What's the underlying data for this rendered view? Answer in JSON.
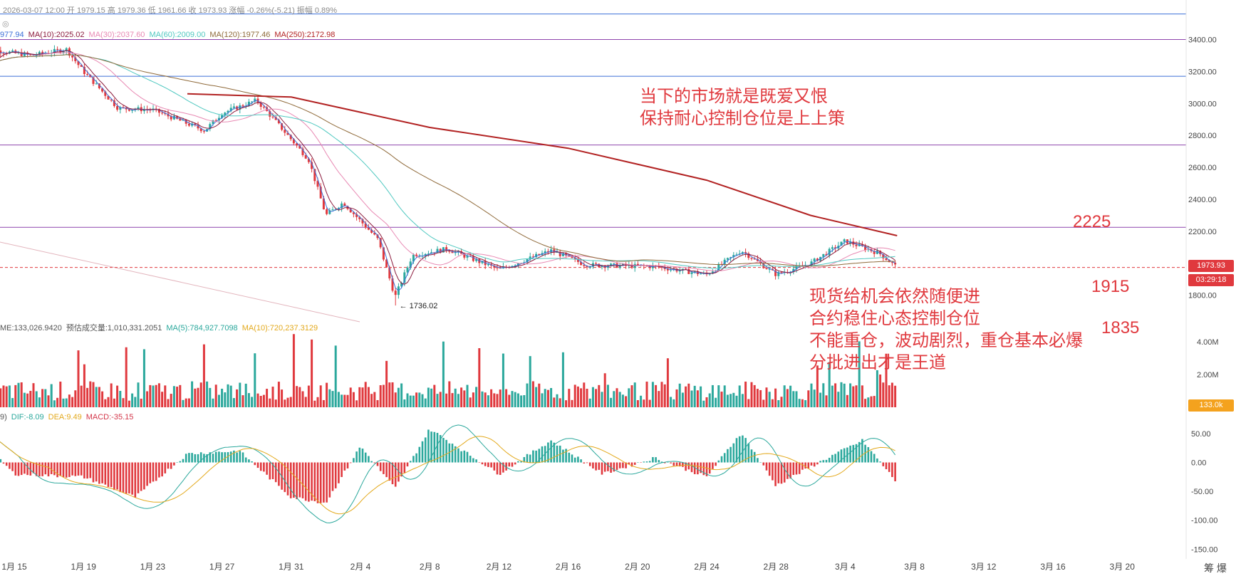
{
  "header": {
    "datetime": "2026-03-07 12:00",
    "ohlc": [
      {
        "label": "开",
        "value": "1979.15"
      },
      {
        "label": "高",
        "value": "1979.36"
      },
      {
        "label": "低",
        "value": "1961.66"
      },
      {
        "label": "收",
        "value": "1973.93"
      },
      {
        "label": "涨幅",
        "value": "-0.26%(-5.21)"
      },
      {
        "label": "振幅",
        "value": "0.89%"
      }
    ],
    "eye_icon": "eye-hidden-icon"
  },
  "ma_legend": [
    {
      "text": "977.94",
      "color": "#3b6fd8"
    },
    {
      "text": "MA(10):2025.02",
      "color": "#8b1a3c"
    },
    {
      "text": "MA(30):2037.60",
      "color": "#e889b3"
    },
    {
      "text": "MA(60):2009.00",
      "color": "#4fc8c0"
    },
    {
      "text": "MA(120):1977.46",
      "color": "#8f6a3a"
    },
    {
      "text": "MA(250):2172.98",
      "color": "#b22222"
    }
  ],
  "volume_legend": [
    {
      "text": "ME:133,026.9420",
      "color": "#555555"
    },
    {
      "text": "预估成交量:1,010,331.2051",
      "color": "#555555"
    },
    {
      "text": "MA(5):784,927.7098",
      "color": "#2ba89c"
    },
    {
      "text": "MA(10):720,237.3129",
      "color": "#e3a91c"
    }
  ],
  "macd_legend": [
    {
      "text": "9)",
      "color": "#555555"
    },
    {
      "text": "DIF:-8.09",
      "color": "#2ba89c"
    },
    {
      "text": "DEA:9.49",
      "color": "#e3a91c"
    },
    {
      "text": "MACD:-35.15",
      "color": "#d3364a"
    }
  ],
  "annotations": {
    "top_note": [
      "当下的市场就是既爱又恨",
      "保持耐心控制仓位是上上策"
    ],
    "mid_note": [
      "现货给机会依然随便进",
      "合约稳住心态控制仓位",
      "不能重仓，波动剧烈，重仓基本必爆",
      "分批进出才是王道"
    ],
    "level_2225": "2225",
    "level_1915": "1915",
    "level_1835": "1835",
    "low_marker": "← 1736.02"
  },
  "badges": {
    "price": "1973.93",
    "countdown": "03:29:18",
    "volume": "133.0k"
  },
  "corner_label": "筹 爆",
  "colors": {
    "up": "#2ba89c",
    "down": "#e0393e",
    "ma5": "#3b6fd8",
    "ma10": "#8b1a3c",
    "ma30": "#e889b3",
    "ma60": "#4fc8c0",
    "ma120": "#8f6a3a",
    "ma250": "#b22222"
  },
  "chart_data": [
    {
      "type": "candlestick",
      "title": "",
      "x_tick_labels": [
        "1月 15",
        "1月 19",
        "1月 23",
        "1月 27",
        "1月 31",
        "2月 4",
        "2月 8",
        "2月 12",
        "2月 16",
        "2月 20",
        "2月 24",
        "2月 28",
        "3月 4",
        "3月 8",
        "3月 12",
        "3月 16",
        "3月 20"
      ],
      "y_tick_labels": [
        "3400.00",
        "3200.00",
        "3000.00",
        "2800.00",
        "2600.00",
        "2400.00",
        "2200.00",
        "1800.00"
      ],
      "ylim": [
        1700,
        3500
      ],
      "horizontal_levels": [
        {
          "value": 3400,
          "color": "#8e44ad"
        },
        {
          "value": 3170,
          "color": "#3b6fd8"
        },
        {
          "value": 2740,
          "color": "#8e44ad"
        },
        {
          "value": 2225,
          "color": "#8e44ad"
        },
        {
          "value": 3560,
          "color": "#3b6fd8"
        }
      ],
      "close_path": [
        {
          "date": "2026-01-13",
          "close": 3200
        },
        {
          "date": "2026-01-14",
          "close": 3330
        },
        {
          "date": "2026-01-16",
          "close": 3300
        },
        {
          "date": "2026-01-18",
          "close": 3340
        },
        {
          "date": "2026-01-19",
          "close": 3200
        },
        {
          "date": "2026-01-21",
          "close": 2970
        },
        {
          "date": "2026-01-23",
          "close": 2960
        },
        {
          "date": "2026-01-26",
          "close": 2830
        },
        {
          "date": "2026-01-27",
          "close": 2940
        },
        {
          "date": "2026-01-29",
          "close": 3020
        },
        {
          "date": "2026-01-30",
          "close": 2900
        },
        {
          "date": "2026-02-01",
          "close": 2650
        },
        {
          "date": "2026-02-02",
          "close": 2300
        },
        {
          "date": "2026-02-03",
          "close": 2380
        },
        {
          "date": "2026-02-05",
          "close": 2150
        },
        {
          "date": "2026-02-06",
          "close": 1790
        },
        {
          "date": "2026-02-07",
          "close": 2050
        },
        {
          "date": "2026-02-09",
          "close": 2090
        },
        {
          "date": "2026-02-12",
          "close": 1960
        },
        {
          "date": "2026-02-15",
          "close": 2080
        },
        {
          "date": "2026-02-17",
          "close": 1990
        },
        {
          "date": "2026-02-21",
          "close": 1980
        },
        {
          "date": "2026-02-24",
          "close": 1930
        },
        {
          "date": "2026-02-26",
          "close": 2080
        },
        {
          "date": "2026-02-28",
          "close": 1930
        },
        {
          "date": "2026-03-02",
          "close": 2000
        },
        {
          "date": "2026-03-04",
          "close": 2140
        },
        {
          "date": "2026-03-06",
          "close": 2060
        },
        {
          "date": "2026-03-07",
          "close": 1973.93
        }
      ],
      "low_point": {
        "date": "2026-02-06",
        "value": 1736.02
      },
      "ma250_path": [
        {
          "date": "2026-01-25",
          "value": 3060
        },
        {
          "date": "2026-01-31",
          "value": 3040
        },
        {
          "date": "2026-02-08",
          "value": 2850
        },
        {
          "date": "2026-02-16",
          "value": 2720
        },
        {
          "date": "2026-02-24",
          "value": 2520
        },
        {
          "date": "2026-03-02",
          "value": 2300
        },
        {
          "date": "2026-03-07",
          "value": 2172.98
        }
      ]
    },
    {
      "type": "bar",
      "title": "Volume",
      "y_tick_labels": [
        "4.00M",
        "2.00M"
      ],
      "ylim": [
        0,
        5000000
      ]
    },
    {
      "type": "bar",
      "title": "MACD",
      "y_tick_labels": [
        "50.00",
        "0.00",
        "-50.00",
        "-100.00",
        "-150.00"
      ],
      "ylim": [
        -165,
        65
      ],
      "histogram_path": [
        {
          "date": "2026-01-13",
          "value": 40
        },
        {
          "date": "2026-01-15",
          "value": -20
        },
        {
          "date": "2026-01-19",
          "value": -25
        },
        {
          "date": "2026-01-22",
          "value": -60
        },
        {
          "date": "2026-01-25",
          "value": 15
        },
        {
          "date": "2026-01-28",
          "value": 20
        },
        {
          "date": "2026-01-31",
          "value": -60
        },
        {
          "date": "2026-02-02",
          "value": -70
        },
        {
          "date": "2026-02-04",
          "value": 28
        },
        {
          "date": "2026-02-06",
          "value": -45
        },
        {
          "date": "2026-02-08",
          "value": 58
        },
        {
          "date": "2026-02-12",
          "value": -20
        },
        {
          "date": "2026-02-15",
          "value": 38
        },
        {
          "date": "2026-02-18",
          "value": -20
        },
        {
          "date": "2026-02-21",
          "value": 8
        },
        {
          "date": "2026-02-24",
          "value": -25
        },
        {
          "date": "2026-02-26",
          "value": 52
        },
        {
          "date": "2026-02-28",
          "value": -40
        },
        {
          "date": "2026-03-03",
          "value": 8
        },
        {
          "date": "2026-03-05",
          "value": 38
        },
        {
          "date": "2026-03-07",
          "value": -35.15
        }
      ],
      "dif_latest": -8.09,
      "dea_latest": 9.49
    }
  ]
}
